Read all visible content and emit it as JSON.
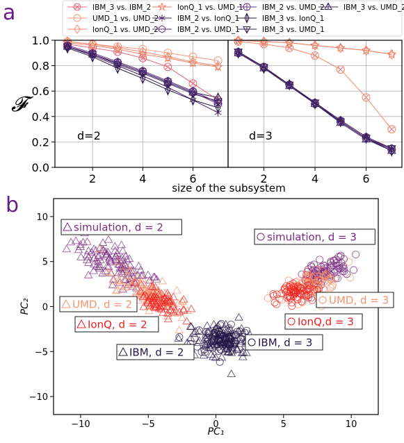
{
  "panel_labels": [
    "a",
    "b"
  ],
  "colors": {
    "panel_label": "#6a1b86",
    "IBM_3 vs. IBM_2": "#e8687d",
    "UMD_1 vs. UMD_2": "#f39b7a",
    "IonQ_1 vs. UMD_2": "#f08a6f",
    "IonQ_1 vs. UMD_1": "#ef7f62",
    "IBM_2 vs. IonQ_1": "#4c1f6b",
    "IBM_2 vs. UMD_1": "#5b2a7d",
    "IBM_2 vs. UMD_2": "#6b3389",
    "IBM_3 vs. IonQ_1": "#2a1748",
    "IBM_3 vs. UMD_1": "#37205a",
    "IBM_3 vs. UMD_2": "#3f2265",
    "simulation": "#7a2a80",
    "UMD": "#f5936f",
    "IonQ": "#f0201e",
    "IBM": "#231646"
  },
  "chart_data": [
    {
      "type": "line",
      "ylabel": "𝓕",
      "xlabel": "size of the subsystem",
      "ylim": [
        0,
        1.0
      ],
      "yticks": [
        "0.0",
        "0.2",
        "0.4",
        "0.6",
        "0.8",
        "1.0"
      ],
      "grid": true,
      "legend_position": "top",
      "subplots": [
        {
          "annotation": "d=2",
          "x": [
            1,
            2,
            3,
            4,
            5,
            6,
            7
          ],
          "xlim": [
            0.5,
            7.4
          ],
          "xticks": [
            "2",
            "4",
            "6"
          ],
          "series": [
            {
              "name": "IBM_3 vs. IBM_2",
              "marker": "x-circle",
              "values": [
                0.97,
                0.94,
                0.91,
                0.86,
                0.79,
                0.66,
                0.53
              ]
            },
            {
              "name": "UMD_1 vs. UMD_2",
              "marker": "circle",
              "values": [
                0.99,
                0.97,
                0.95,
                0.93,
                0.9,
                0.87,
                0.84
              ]
            },
            {
              "name": "IonQ_1 vs. UMD_2",
              "marker": "diamond",
              "values": [
                0.99,
                0.97,
                0.94,
                0.91,
                0.87,
                0.83,
                0.8
              ]
            },
            {
              "name": "IonQ_1 vs. UMD_1",
              "marker": "star",
              "values": [
                0.98,
                0.96,
                0.93,
                0.89,
                0.86,
                0.82,
                0.79
              ]
            },
            {
              "name": "IBM_2 vs. IonQ_1",
              "marker": "asterisk",
              "values": [
                0.95,
                0.88,
                0.8,
                0.72,
                0.63,
                0.53,
                0.43
              ]
            },
            {
              "name": "IBM_2 vs. UMD_1",
              "marker": "hexagon",
              "values": [
                0.96,
                0.9,
                0.83,
                0.76,
                0.68,
                0.6,
                0.51
              ]
            },
            {
              "name": "IBM_2 vs. UMD_2",
              "marker": "plus-circle",
              "values": [
                0.95,
                0.89,
                0.82,
                0.75,
                0.67,
                0.59,
                0.5
              ]
            },
            {
              "name": "IBM_3 vs. IonQ_1",
              "marker": "thin-diamond",
              "values": [
                0.94,
                0.87,
                0.78,
                0.7,
                0.61,
                0.53,
                0.47
              ]
            },
            {
              "name": "IBM_3 vs. UMD_1",
              "marker": "triangle-down",
              "values": [
                0.95,
                0.89,
                0.81,
                0.74,
                0.66,
                0.58,
                0.52
              ]
            },
            {
              "name": "IBM_3 vs. UMD_2",
              "marker": "triangle-up",
              "values": [
                0.95,
                0.89,
                0.82,
                0.75,
                0.67,
                0.59,
                0.55
              ]
            }
          ]
        },
        {
          "annotation": "d=3",
          "x": [
            1,
            2,
            3,
            4,
            5,
            6,
            7
          ],
          "xlim": [
            0.6,
            7.4
          ],
          "xticks": [
            "2",
            "4",
            "6"
          ],
          "series": [
            {
              "name": "IBM_3 vs. IBM_2",
              "marker": "x-circle",
              "values": [
                0.99,
                0.97,
                0.94,
                0.88,
                0.77,
                0.55,
                0.3
              ]
            },
            {
              "name": "UMD_1 vs. UMD_2",
              "marker": "circle",
              "values": [
                0.99,
                0.97,
                0.94,
                0.88,
                0.77,
                0.55,
                0.3
              ]
            },
            {
              "name": "IonQ_1 vs. UMD_2",
              "marker": "diamond",
              "values": [
                1.0,
                0.99,
                0.98,
                0.96,
                0.94,
                0.92,
                0.89
              ]
            },
            {
              "name": "IonQ_1 vs. UMD_1",
              "marker": "star",
              "values": [
                1.0,
                0.99,
                0.98,
                0.96,
                0.94,
                0.92,
                0.89
              ]
            },
            {
              "name": "IBM_2 vs. IonQ_1",
              "marker": "asterisk",
              "values": [
                0.91,
                0.79,
                0.65,
                0.51,
                0.37,
                0.24,
                0.15
              ]
            },
            {
              "name": "IBM_2 vs. UMD_1",
              "marker": "hexagon",
              "values": [
                0.91,
                0.79,
                0.65,
                0.51,
                0.37,
                0.24,
                0.15
              ]
            },
            {
              "name": "IBM_2 vs. UMD_2",
              "marker": "plus-circle",
              "values": [
                0.9,
                0.79,
                0.65,
                0.5,
                0.36,
                0.23,
                0.14
              ]
            },
            {
              "name": "IBM_3 vs. IonQ_1",
              "marker": "thin-diamond",
              "values": [
                0.9,
                0.78,
                0.65,
                0.5,
                0.36,
                0.23,
                0.13
              ]
            },
            {
              "name": "IBM_3 vs. UMD_1",
              "marker": "triangle-down",
              "values": [
                0.91,
                0.79,
                0.65,
                0.51,
                0.36,
                0.23,
                0.15
              ]
            },
            {
              "name": "IBM_3 vs. UMD_2",
              "marker": "triangle-up",
              "values": [
                0.9,
                0.78,
                0.64,
                0.5,
                0.35,
                0.22,
                0.13
              ]
            }
          ]
        }
      ]
    },
    {
      "type": "scatter",
      "xlabel": "PC₁",
      "ylabel": "PC₂",
      "xlim": [
        -12,
        12
      ],
      "ylim": [
        -12,
        12
      ],
      "xticks": [
        "−10",
        "−5",
        "0",
        "5",
        "10"
      ],
      "yticks": [
        "10",
        "5",
        "0",
        "−5",
        "−10"
      ],
      "grid": false,
      "clusters": [
        {
          "group": "simulation",
          "d": 2,
          "marker": "triangle",
          "label": "simulation, d = 2",
          "center": [
            -7.5,
            4.5
          ],
          "spread_along": 2.0,
          "spread_across": 0.8,
          "slope": -1.0,
          "count": 110
        },
        {
          "group": "UMD",
          "d": 2,
          "marker": "triangle",
          "label": "UMD, d = 2",
          "center": [
            -5.0,
            1.6
          ],
          "spread_along": 1.7,
          "spread_across": 0.7,
          "slope": -1.0,
          "count": 110
        },
        {
          "group": "IonQ",
          "d": 2,
          "marker": "triangle",
          "label": "IonQ, d = 2",
          "center": [
            -4.0,
            0.4
          ],
          "spread_along": 1.0,
          "spread_across": 0.6,
          "slope": -1.0,
          "count": 60
        },
        {
          "group": "IBM",
          "d": 2,
          "marker": "triangle",
          "label": "IBM, d = 2",
          "center": [
            0.3,
            -3.9
          ],
          "spread_along": 1.3,
          "spread_across": 0.9,
          "slope": -0.8,
          "count": 90
        },
        {
          "group": "simulation",
          "d": 3,
          "marker": "circle",
          "label": "simulation, d = 3",
          "center": [
            8.2,
            3.8
          ],
          "spread_along": 1.2,
          "spread_across": 0.6,
          "slope": 0.7,
          "count": 90
        },
        {
          "group": "UMD",
          "d": 3,
          "marker": "circle",
          "label": "UMD, d = 3",
          "center": [
            7.0,
            2.4
          ],
          "spread_along": 1.2,
          "spread_across": 0.6,
          "slope": 0.7,
          "count": 90
        },
        {
          "group": "IonQ",
          "d": 3,
          "marker": "circle",
          "label": "IonQ,d = 3",
          "center": [
            5.9,
            1.5
          ],
          "spread_along": 0.9,
          "spread_across": 0.6,
          "slope": 0.7,
          "count": 60
        },
        {
          "group": "IBM",
          "d": 3,
          "marker": "circle",
          "label": "IBM, d = 3",
          "center": [
            0.5,
            -3.6
          ],
          "spread_along": 1.1,
          "spread_across": 0.9,
          "slope": 0.0,
          "count": 90
        }
      ]
    }
  ]
}
